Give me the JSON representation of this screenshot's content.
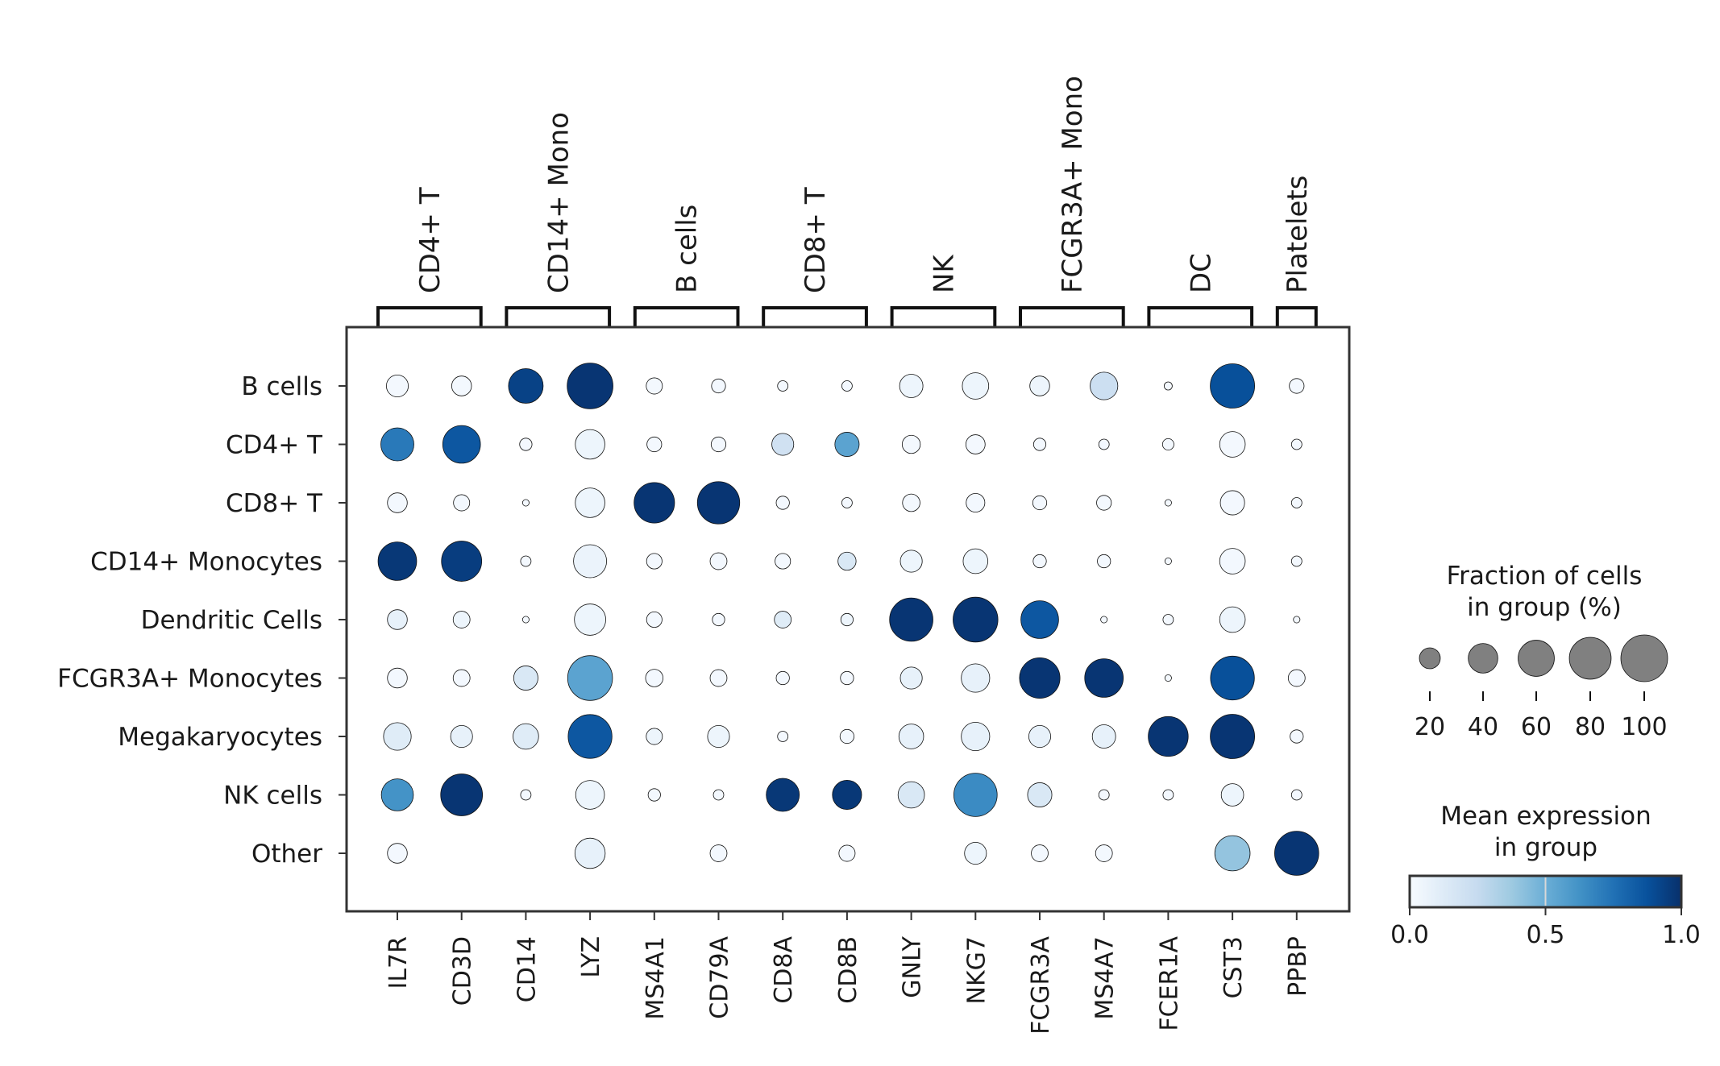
{
  "chart_data": {
    "type": "dotplot",
    "title": "",
    "xlabel": "",
    "ylabel": "",
    "group_brackets": [
      "CD4+ T",
      "CD14+ Mono",
      "B cells",
      "CD8+ T",
      "NK",
      "FCGR3A+ Mono",
      "DC",
      "Platelets"
    ],
    "genes": [
      "IL7R",
      "CD3D",
      "CD14",
      "LYZ",
      "MS4A1",
      "CD79A",
      "CD8A",
      "CD8B",
      "GNLY",
      "NKG7",
      "FCGR3A",
      "MS4A7",
      "FCER1A",
      "CST3",
      "PPBP"
    ],
    "cell_types": [
      "B cells",
      "CD4+ T",
      "CD8+ T",
      "CD14+ Monocytes",
      "Dendritic Cells",
      "FCGR3A+ Monocytes",
      "Megakaryocytes",
      "NK cells",
      "Other"
    ],
    "fraction": [
      [
        22,
        18,
        55,
        96,
        12,
        9,
        5,
        5,
        25,
        32,
        18,
        35,
        3,
        90,
        10
      ],
      [
        50,
        65,
        7,
        40,
        10,
        10,
        22,
        27,
        15,
        17,
        7,
        5,
        6,
        30,
        5
      ],
      [
        18,
        12,
        2,
        40,
        75,
        82,
        8,
        5,
        14,
        16,
        9,
        10,
        2,
        27,
        5
      ],
      [
        68,
        74,
        5,
        50,
        11,
        13,
        11,
        15,
        22,
        28,
        8,
        8,
        2,
        30,
        5
      ],
      [
        18,
        13,
        2,
        45,
        11,
        7,
        13,
        7,
        86,
        92,
        65,
        2,
        5,
        30,
        2
      ],
      [
        18,
        13,
        27,
        92,
        14,
        13,
        8,
        8,
        22,
        37,
        75,
        68,
        2,
        88,
        13
      ],
      [
        35,
        22,
        30,
        88,
        12,
        22,
        5,
        9,
        28,
        37,
        22,
        25,
        73,
        90,
        8
      ],
      [
        47,
        80,
        5,
        38,
        7,
        5,
        50,
        39,
        32,
        86,
        27,
        5,
        5,
        23,
        5
      ],
      [
        18,
        0,
        0,
        42,
        0,
        13,
        0,
        12,
        0,
        22,
        13,
        13,
        0,
        57,
        89
      ]
    ],
    "expression": [
      [
        0.02,
        0.02,
        0.93,
        0.98,
        0.02,
        0.02,
        0.02,
        0.02,
        0.05,
        0.05,
        0.05,
        0.22,
        0.02,
        0.88,
        0.02
      ],
      [
        0.72,
        0.85,
        0.02,
        0.05,
        0.02,
        0.02,
        0.2,
        0.55,
        0.02,
        0.02,
        0.02,
        0.02,
        0.02,
        0.02,
        0.02
      ],
      [
        0.02,
        0.02,
        0.02,
        0.05,
        0.98,
        0.98,
        0.02,
        0.02,
        0.02,
        0.02,
        0.02,
        0.02,
        0.02,
        0.02,
        0.02
      ],
      [
        0.97,
        0.95,
        0.02,
        0.06,
        0.02,
        0.02,
        0.02,
        0.15,
        0.05,
        0.05,
        0.02,
        0.02,
        0.02,
        0.02,
        0.02
      ],
      [
        0.08,
        0.05,
        0.02,
        0.05,
        0.02,
        0.02,
        0.12,
        0.05,
        0.98,
        0.98,
        0.85,
        0.02,
        0.02,
        0.05,
        0.02
      ],
      [
        0.02,
        0.02,
        0.15,
        0.55,
        0.02,
        0.02,
        0.02,
        0.02,
        0.08,
        0.08,
        0.98,
        0.98,
        0.02,
        0.88,
        0.02
      ],
      [
        0.12,
        0.08,
        0.12,
        0.85,
        0.05,
        0.05,
        0.02,
        0.02,
        0.08,
        0.08,
        0.08,
        0.08,
        0.98,
        0.98,
        0.02
      ],
      [
        0.62,
        0.98,
        0.02,
        0.05,
        0.02,
        0.02,
        0.97,
        0.97,
        0.15,
        0.65,
        0.15,
        0.02,
        0.02,
        0.05,
        0.02
      ],
      [
        0.02,
        0.0,
        0.0,
        0.08,
        0.0,
        0.02,
        0.0,
        0.02,
        0.0,
        0.05,
        0.02,
        0.02,
        0.0,
        0.4,
        0.98
      ]
    ],
    "size_legend": {
      "title_lines": [
        "Fraction of cells",
        "in group (%)"
      ],
      "values": [
        "20",
        "40",
        "60",
        "80",
        "100"
      ]
    },
    "color_legend": {
      "title_lines": [
        "Mean expression",
        "in group"
      ],
      "colormap": "Blues",
      "ticks": [
        "0.0",
        "0.5",
        "1.0"
      ],
      "range": [
        0,
        1
      ]
    },
    "colors": {
      "dot_size_legend_fill": "#808080",
      "frame": "#333333",
      "colormap_stops": [
        "#f7fbff",
        "#deebf7",
        "#c6dbef",
        "#9ecae1",
        "#6baed6",
        "#4292c6",
        "#2171b5",
        "#08519c",
        "#08306b"
      ]
    }
  }
}
